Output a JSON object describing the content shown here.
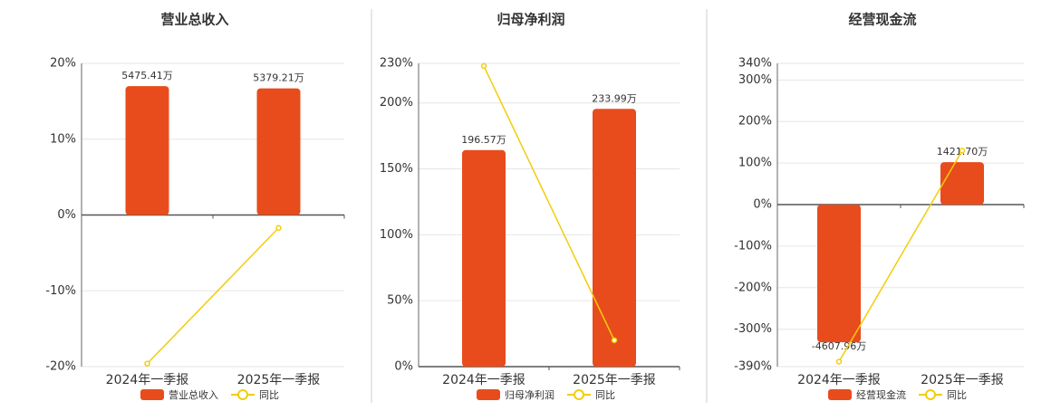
{
  "chart_data": [
    {
      "type": "bar",
      "title": "营业总收入",
      "categories": [
        "2024年一季报",
        "2025年一季报"
      ],
      "series": [
        {
          "name": "营业总收入",
          "color": "#e84c1c",
          "values": [
            5475.41,
            5379.21
          ],
          "value_labels": [
            "5475.41万",
            "5379.21万"
          ]
        },
        {
          "name": "同比",
          "type": "line",
          "color": "#f2cd0a",
          "values": [
            -19.6,
            -1.7
          ]
        }
      ],
      "ylim": [
        -20,
        20
      ],
      "yticks": [
        {
          "value": -20,
          "label": "-20%"
        },
        {
          "value": -10,
          "label": "-10%"
        },
        {
          "value": 0,
          "label": "0%"
        },
        {
          "value": 10,
          "label": "10%"
        },
        {
          "value": 20,
          "label": "20%"
        }
      ]
    },
    {
      "type": "bar",
      "title": "归母净利润",
      "categories": [
        "2024年一季报",
        "2025年一季报"
      ],
      "series": [
        {
          "name": "归母净利润",
          "color": "#e84c1c",
          "values": [
            196.57,
            233.99
          ],
          "value_labels": [
            "196.57万",
            "233.99万"
          ]
        },
        {
          "name": "同比",
          "type": "line",
          "color": "#f2cd0a",
          "values": [
            228,
            20
          ]
        }
      ],
      "ylim": [
        0,
        230
      ],
      "yticks": [
        {
          "value": 0,
          "label": "0%"
        },
        {
          "value": 50,
          "label": "50%"
        },
        {
          "value": 100,
          "label": "100%"
        },
        {
          "value": 150,
          "label": "150%"
        },
        {
          "value": 200,
          "label": "200%"
        },
        {
          "value": 230,
          "label": "230%"
        }
      ]
    },
    {
      "type": "bar",
      "title": "经营现金流",
      "categories": [
        "2024年一季报",
        "2025年一季报"
      ],
      "series": [
        {
          "name": "经营现金流",
          "color": "#e84c1c",
          "values": [
            -4607.96,
            1421.7
          ],
          "value_labels": [
            "-4607.96万",
            "1421.70万"
          ]
        },
        {
          "name": "同比",
          "type": "line",
          "color": "#f2cd0a",
          "values": [
            -378,
            130
          ]
        }
      ],
      "ylim": [
        -390,
        340
      ],
      "yticks": [
        {
          "value": -390,
          "label": "-390%"
        },
        {
          "value": -300,
          "label": "-300%"
        },
        {
          "value": -200,
          "label": "-200%"
        },
        {
          "value": -100,
          "label": "-100%"
        },
        {
          "value": 0,
          "label": "0%"
        },
        {
          "value": 100,
          "label": "100%"
        },
        {
          "value": 200,
          "label": "200%"
        },
        {
          "value": 300,
          "label": "300%"
        },
        {
          "value": 340,
          "label": "340%"
        }
      ]
    }
  ]
}
